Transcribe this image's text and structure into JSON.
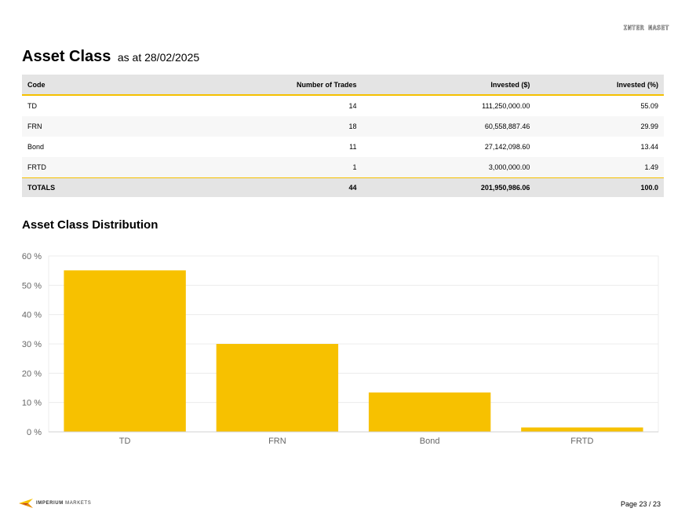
{
  "header": {
    "watermark": "INTER NASET"
  },
  "title": {
    "main": "Asset Class",
    "sub": "as at 28/02/2025"
  },
  "table": {
    "columns": [
      "Code",
      "Number of Trades",
      "Invested ($)",
      "Invested (%)"
    ],
    "rows": [
      [
        "TD",
        "14",
        "111,250,000.00",
        "55.09"
      ],
      [
        "FRN",
        "18",
        "60,558,887.46",
        "29.99"
      ],
      [
        "Bond",
        "11",
        "27,142,098.60",
        "13.44"
      ],
      [
        "FRTD",
        "1",
        "3,000,000.00",
        "1.49"
      ]
    ],
    "totals": [
      "TOTALS",
      "44",
      "201,950,986.06",
      "100.0"
    ]
  },
  "chart_section": {
    "title": "Asset Class Distribution"
  },
  "chart_data": {
    "type": "bar",
    "categories": [
      "TD",
      "FRN",
      "Bond",
      "FRTD"
    ],
    "values": [
      55.09,
      29.99,
      13.44,
      1.49
    ],
    "ylim": [
      0,
      60
    ],
    "yticks": [
      0,
      10,
      20,
      30,
      40,
      50,
      60
    ],
    "ytick_labels": [
      "0 %",
      "10 %",
      "20 %",
      "30 %",
      "40 %",
      "50 %",
      "60 %"
    ],
    "grid": true,
    "bar_color": "#f7c100",
    "grid_color": "#ececec",
    "axis_label_color": "#666666"
  },
  "footer": {
    "brand_bold": "IMPERIUM",
    "brand_light": "MARKETS",
    "logo_icon": "imperium-markets-logo-icon",
    "page": "Page 23 / 23"
  },
  "colors": {
    "accent": "#f5c000",
    "header_bg": "#e4e4e4"
  }
}
